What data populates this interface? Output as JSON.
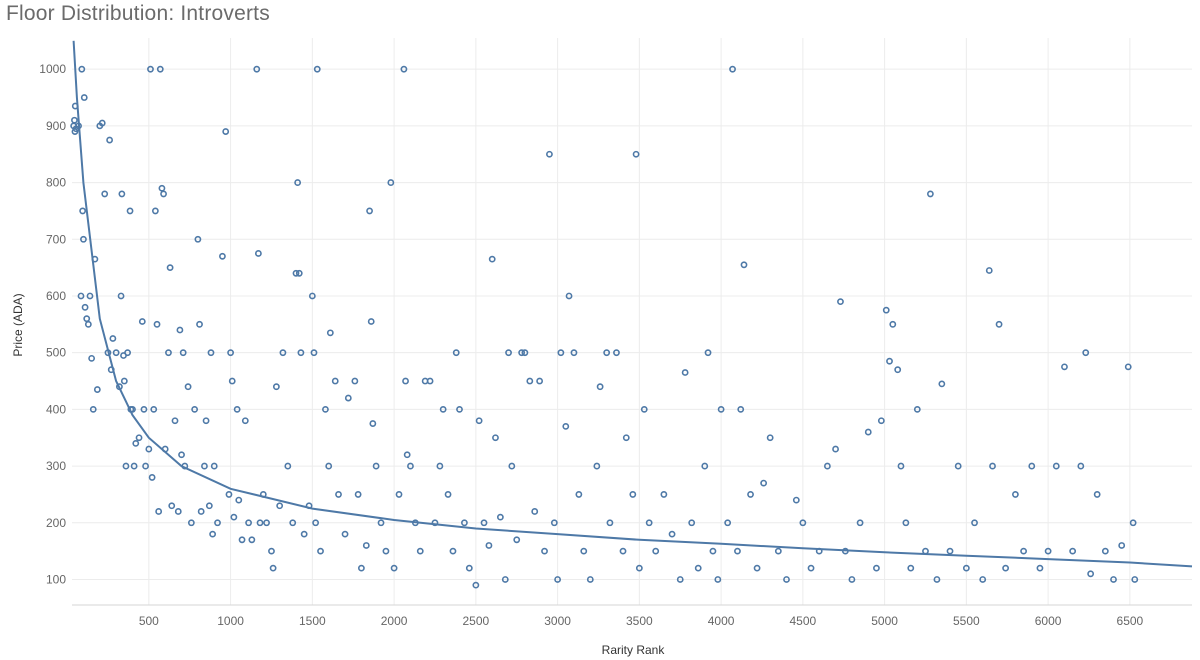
{
  "chart_data": {
    "type": "scatter",
    "title": "Floor Distribution: Introverts",
    "xlabel": "Rarity Rank",
    "ylabel": "Price (ADA)",
    "xlim": [
      30,
      6880
    ],
    "ylim": [
      55,
      1055
    ],
    "x_ticks": [
      500,
      1000,
      1500,
      2000,
      2500,
      3000,
      3500,
      4000,
      4500,
      5000,
      5500,
      6000,
      6500
    ],
    "y_ticks": [
      100,
      200,
      300,
      400,
      500,
      600,
      700,
      800,
      900,
      1000
    ],
    "grid": true,
    "colors": {
      "marker": "#4e79a7",
      "trend": "#4e79a7",
      "grid": "#ececec"
    },
    "trendline": {
      "type": "power",
      "points": [
        [
          40,
          1050
        ],
        [
          60,
          950
        ],
        [
          100,
          800
        ],
        [
          200,
          560
        ],
        [
          300,
          450
        ],
        [
          400,
          390
        ],
        [
          500,
          350
        ],
        [
          700,
          300
        ],
        [
          1000,
          260
        ],
        [
          1500,
          225
        ],
        [
          2000,
          205
        ],
        [
          2500,
          190
        ],
        [
          3000,
          180
        ],
        [
          3500,
          170
        ],
        [
          4000,
          163
        ],
        [
          4500,
          155
        ],
        [
          5000,
          148
        ],
        [
          5500,
          142
        ],
        [
          6000,
          136
        ],
        [
          6500,
          130
        ],
        [
          6880,
          123
        ]
      ]
    },
    "points": [
      [
        40,
        900
      ],
      [
        45,
        910
      ],
      [
        48,
        890
      ],
      [
        50,
        935
      ],
      [
        55,
        895
      ],
      [
        70,
        900
      ],
      [
        85,
        600
      ],
      [
        90,
        1000
      ],
      [
        95,
        750
      ],
      [
        100,
        700
      ],
      [
        105,
        950
      ],
      [
        110,
        580
      ],
      [
        120,
        560
      ],
      [
        130,
        550
      ],
      [
        140,
        600
      ],
      [
        150,
        490
      ],
      [
        160,
        400
      ],
      [
        170,
        665
      ],
      [
        185,
        435
      ],
      [
        200,
        900
      ],
      [
        215,
        905
      ],
      [
        230,
        780
      ],
      [
        250,
        500
      ],
      [
        260,
        875
      ],
      [
        270,
        470
      ],
      [
        280,
        525
      ],
      [
        300,
        500
      ],
      [
        320,
        440
      ],
      [
        330,
        600
      ],
      [
        335,
        780
      ],
      [
        345,
        495
      ],
      [
        350,
        450
      ],
      [
        360,
        300
      ],
      [
        370,
        500
      ],
      [
        385,
        750
      ],
      [
        390,
        400
      ],
      [
        400,
        400
      ],
      [
        410,
        300
      ],
      [
        420,
        340
      ],
      [
        440,
        350
      ],
      [
        460,
        555
      ],
      [
        470,
        400
      ],
      [
        480,
        300
      ],
      [
        500,
        330
      ],
      [
        510,
        1000
      ],
      [
        520,
        280
      ],
      [
        530,
        400
      ],
      [
        540,
        750
      ],
      [
        550,
        550
      ],
      [
        560,
        220
      ],
      [
        570,
        1000
      ],
      [
        580,
        790
      ],
      [
        590,
        780
      ],
      [
        600,
        330
      ],
      [
        620,
        500
      ],
      [
        630,
        650
      ],
      [
        640,
        230
      ],
      [
        660,
        380
      ],
      [
        680,
        220
      ],
      [
        690,
        540
      ],
      [
        700,
        320
      ],
      [
        710,
        500
      ],
      [
        720,
        300
      ],
      [
        740,
        440
      ],
      [
        760,
        200
      ],
      [
        780,
        400
      ],
      [
        800,
        700
      ],
      [
        810,
        550
      ],
      [
        820,
        220
      ],
      [
        840,
        300
      ],
      [
        850,
        380
      ],
      [
        870,
        230
      ],
      [
        880,
        500
      ],
      [
        890,
        180
      ],
      [
        900,
        300
      ],
      [
        920,
        200
      ],
      [
        950,
        670
      ],
      [
        970,
        890
      ],
      [
        990,
        250
      ],
      [
        1000,
        500
      ],
      [
        1010,
        450
      ],
      [
        1020,
        210
      ],
      [
        1040,
        400
      ],
      [
        1050,
        240
      ],
      [
        1070,
        170
      ],
      [
        1090,
        380
      ],
      [
        1110,
        200
      ],
      [
        1130,
        170
      ],
      [
        1160,
        1000
      ],
      [
        1170,
        675
      ],
      [
        1180,
        200
      ],
      [
        1200,
        250
      ],
      [
        1220,
        200
      ],
      [
        1250,
        150
      ],
      [
        1260,
        120
      ],
      [
        1280,
        440
      ],
      [
        1300,
        230
      ],
      [
        1320,
        500
      ],
      [
        1350,
        300
      ],
      [
        1380,
        200
      ],
      [
        1400,
        640
      ],
      [
        1410,
        800
      ],
      [
        1420,
        640
      ],
      [
        1430,
        500
      ],
      [
        1450,
        180
      ],
      [
        1480,
        230
      ],
      [
        1500,
        600
      ],
      [
        1510,
        500
      ],
      [
        1520,
        200
      ],
      [
        1530,
        1000
      ],
      [
        1550,
        150
      ],
      [
        1580,
        400
      ],
      [
        1600,
        300
      ],
      [
        1610,
        535
      ],
      [
        1640,
        450
      ],
      [
        1660,
        250
      ],
      [
        1700,
        180
      ],
      [
        1720,
        420
      ],
      [
        1760,
        450
      ],
      [
        1780,
        250
      ],
      [
        1800,
        120
      ],
      [
        1830,
        160
      ],
      [
        1850,
        750
      ],
      [
        1860,
        555
      ],
      [
        1870,
        375
      ],
      [
        1890,
        300
      ],
      [
        1920,
        200
      ],
      [
        1950,
        150
      ],
      [
        1980,
        800
      ],
      [
        2000,
        120
      ],
      [
        2030,
        250
      ],
      [
        2060,
        1000
      ],
      [
        2070,
        450
      ],
      [
        2080,
        320
      ],
      [
        2100,
        300
      ],
      [
        2130,
        200
      ],
      [
        2160,
        150
      ],
      [
        2190,
        450
      ],
      [
        2220,
        450
      ],
      [
        2250,
        200
      ],
      [
        2280,
        300
      ],
      [
        2300,
        400
      ],
      [
        2330,
        250
      ],
      [
        2360,
        150
      ],
      [
        2380,
        500
      ],
      [
        2400,
        400
      ],
      [
        2430,
        200
      ],
      [
        2460,
        120
      ],
      [
        2500,
        90
      ],
      [
        2520,
        380
      ],
      [
        2550,
        200
      ],
      [
        2580,
        160
      ],
      [
        2600,
        665
      ],
      [
        2620,
        350
      ],
      [
        2650,
        210
      ],
      [
        2680,
        100
      ],
      [
        2700,
        500
      ],
      [
        2720,
        300
      ],
      [
        2750,
        170
      ],
      [
        2780,
        500
      ],
      [
        2800,
        500
      ],
      [
        2830,
        450
      ],
      [
        2860,
        220
      ],
      [
        2890,
        450
      ],
      [
        2920,
        150
      ],
      [
        2950,
        850
      ],
      [
        2980,
        200
      ],
      [
        3000,
        100
      ],
      [
        3020,
        500
      ],
      [
        3050,
        370
      ],
      [
        3070,
        600
      ],
      [
        3100,
        500
      ],
      [
        3130,
        250
      ],
      [
        3160,
        150
      ],
      [
        3200,
        100
      ],
      [
        3240,
        300
      ],
      [
        3260,
        440
      ],
      [
        3300,
        500
      ],
      [
        3320,
        200
      ],
      [
        3360,
        500
      ],
      [
        3400,
        150
      ],
      [
        3420,
        350
      ],
      [
        3460,
        250
      ],
      [
        3480,
        850
      ],
      [
        3500,
        120
      ],
      [
        3530,
        400
      ],
      [
        3560,
        200
      ],
      [
        3600,
        150
      ],
      [
        3650,
        250
      ],
      [
        3700,
        180
      ],
      [
        3750,
        100
      ],
      [
        3780,
        465
      ],
      [
        3820,
        200
      ],
      [
        3860,
        120
      ],
      [
        3900,
        300
      ],
      [
        3920,
        500
      ],
      [
        3950,
        150
      ],
      [
        3980,
        100
      ],
      [
        4000,
        400
      ],
      [
        4040,
        200
      ],
      [
        4070,
        1000
      ],
      [
        4100,
        150
      ],
      [
        4120,
        400
      ],
      [
        4140,
        655
      ],
      [
        4180,
        250
      ],
      [
        4220,
        120
      ],
      [
        4260,
        270
      ],
      [
        4300,
        350
      ],
      [
        4350,
        150
      ],
      [
        4400,
        100
      ],
      [
        4460,
        240
      ],
      [
        4500,
        200
      ],
      [
        4550,
        120
      ],
      [
        4600,
        150
      ],
      [
        4650,
        300
      ],
      [
        4700,
        330
      ],
      [
        4730,
        590
      ],
      [
        4760,
        150
      ],
      [
        4800,
        100
      ],
      [
        4850,
        200
      ],
      [
        4900,
        360
      ],
      [
        4950,
        120
      ],
      [
        4980,
        380
      ],
      [
        5010,
        575
      ],
      [
        5030,
        485
      ],
      [
        5050,
        550
      ],
      [
        5080,
        470
      ],
      [
        5100,
        300
      ],
      [
        5130,
        200
      ],
      [
        5160,
        120
      ],
      [
        5200,
        400
      ],
      [
        5250,
        150
      ],
      [
        5280,
        780
      ],
      [
        5320,
        100
      ],
      [
        5350,
        445
      ],
      [
        5400,
        150
      ],
      [
        5450,
        300
      ],
      [
        5500,
        120
      ],
      [
        5550,
        200
      ],
      [
        5600,
        100
      ],
      [
        5640,
        645
      ],
      [
        5660,
        300
      ],
      [
        5700,
        550
      ],
      [
        5740,
        120
      ],
      [
        5800,
        250
      ],
      [
        5850,
        150
      ],
      [
        5900,
        300
      ],
      [
        5950,
        120
      ],
      [
        6000,
        150
      ],
      [
        6050,
        300
      ],
      [
        6100,
        475
      ],
      [
        6150,
        150
      ],
      [
        6200,
        300
      ],
      [
        6230,
        500
      ],
      [
        6260,
        110
      ],
      [
        6300,
        250
      ],
      [
        6350,
        150
      ],
      [
        6400,
        100
      ],
      [
        6450,
        160
      ],
      [
        6490,
        475
      ],
      [
        6520,
        200
      ],
      [
        6530,
        100
      ]
    ]
  }
}
